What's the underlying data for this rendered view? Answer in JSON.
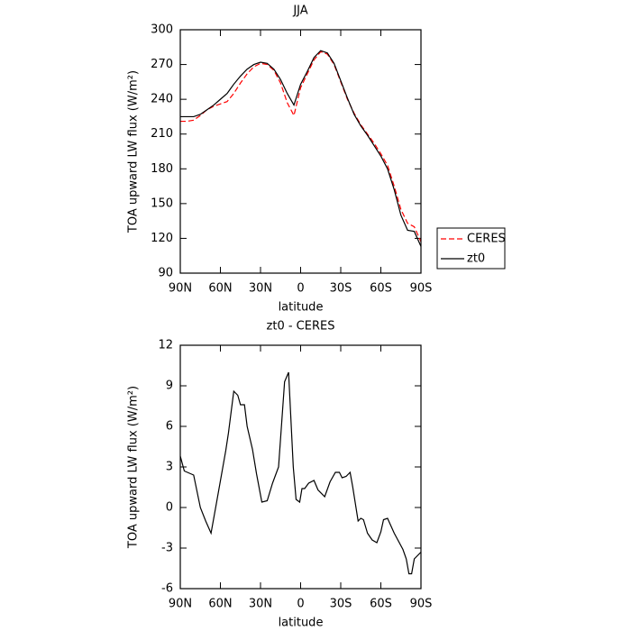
{
  "chart_data": [
    {
      "type": "line",
      "title": "JJA",
      "x_label": "latitude",
      "y_label": "TOA upward LW flux (W/m²)",
      "x": [
        90,
        85,
        80,
        75,
        70,
        65,
        60,
        55,
        50,
        45,
        40,
        35,
        30,
        25,
        20,
        15,
        10,
        5,
        0,
        -5,
        -10,
        -15,
        -20,
        -25,
        -30,
        -35,
        -40,
        -45,
        -50,
        -55,
        -60,
        -65,
        -70,
        -75,
        -80,
        -85,
        -90
      ],
      "series": [
        {
          "name": "CERES",
          "color": "#ff0000",
          "dash": true,
          "values": [
            221,
            221,
            222,
            226,
            231,
            234,
            236,
            238,
            245,
            254,
            262,
            268,
            271,
            270,
            265,
            254,
            237,
            226,
            250,
            262,
            274,
            281,
            279,
            270,
            255,
            240,
            228,
            218,
            210,
            202,
            193,
            183,
            165,
            145,
            133,
            130,
            117
          ]
        },
        {
          "name": "zt0",
          "color": "#000000",
          "dash": false,
          "values": [
            225,
            225,
            225,
            227,
            231,
            235,
            240,
            245,
            253,
            260,
            266,
            270,
            272,
            271,
            266,
            257,
            245,
            235,
            253,
            264,
            276,
            282,
            280,
            271,
            256,
            241,
            227,
            217,
            209,
            200,
            191,
            180,
            162,
            140,
            127,
            126,
            113
          ]
        }
      ],
      "xlim": [
        90,
        -90
      ],
      "xticks": [
        {
          "value": 90,
          "label": "90N"
        },
        {
          "value": 60,
          "label": "60N"
        },
        {
          "value": 30,
          "label": "30N"
        },
        0,
        {
          "value": -30,
          "label": "30S"
        },
        {
          "value": -60,
          "label": "60S"
        },
        {
          "value": -90,
          "label": "90S"
        }
      ],
      "ylim": [
        90,
        300
      ],
      "yticks": [
        90,
        120,
        150,
        180,
        210,
        240,
        270,
        300
      ]
    },
    {
      "type": "line",
      "title": "zt0 - CERES",
      "x_label": "latitude",
      "y_label": "TOA upward LW flux (W/m²)",
      "x": [
        90,
        87,
        80,
        75,
        71,
        67,
        63,
        56,
        54,
        50,
        47,
        45,
        42,
        40,
        36,
        33,
        29,
        25,
        21,
        16.5,
        12,
        9,
        5.5,
        3.4,
        0.7,
        -1,
        -3,
        -6,
        -10,
        -13,
        -18,
        -22,
        -26,
        -29,
        -31,
        -34,
        -37,
        -39,
        -43,
        -45,
        -47,
        -50,
        -53.5,
        -57,
        -60,
        -62,
        -65,
        -70,
        -76.5,
        -79,
        -81,
        -83,
        -85,
        -90
      ],
      "color": "#000000",
      "values": [
        3.8,
        2.7,
        2.4,
        0,
        -1,
        -1.9,
        0.3,
        4.2,
        5.5,
        8.6,
        8.3,
        7.6,
        7.6,
        6,
        4.3,
        2.5,
        0.4,
        0.5,
        1.8,
        3,
        9.3,
        10,
        3,
        0.6,
        0.4,
        1.4,
        1.4,
        1.8,
        2,
        1.3,
        0.8,
        1.9,
        2.6,
        2.6,
        2.2,
        2.3,
        2.6,
        1.5,
        -1,
        -0.8,
        -0.9,
        -1.9,
        -2.4,
        -2.6,
        -1.8,
        -0.9,
        -0.8,
        -1.9,
        -3.1,
        -3.8,
        -4.9,
        -4.9,
        -3.8,
        -3.3
      ],
      "xlim": [
        90,
        -90
      ],
      "xticks": [
        {
          "value": 90,
          "label": "90N"
        },
        {
          "value": 60,
          "label": "60N"
        },
        {
          "value": 30,
          "label": "30N"
        },
        0,
        {
          "value": -30,
          "label": "30S"
        },
        {
          "value": -60,
          "label": "60S"
        },
        {
          "value": -90,
          "label": "90S"
        }
      ],
      "ylim": [
        -6,
        12
      ],
      "yticks": [
        -6,
        -3,
        0,
        3,
        6,
        9,
        12
      ]
    }
  ]
}
